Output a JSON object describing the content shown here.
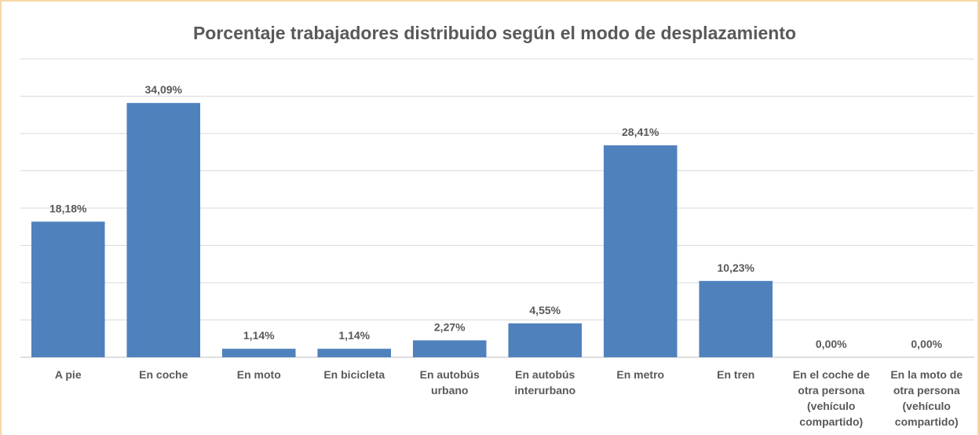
{
  "chart_data": {
    "type": "bar",
    "title": "Porcentaje trabajadores distribuido según el modo de desplazamiento",
    "categories": [
      "A pie",
      "En coche",
      "En moto",
      "En bicicleta",
      "En autobús urbano",
      "En autobús interurbano",
      "En metro",
      "En tren",
      "En el coche de otra persona (vehículo compartido)",
      "En la moto de otra persona (vehículo compartido)"
    ],
    "values": [
      18.18,
      34.09,
      1.14,
      1.14,
      2.27,
      4.55,
      28.41,
      10.23,
      0,
      0
    ],
    "value_labels": [
      "18,18%",
      "34,09%",
      "1,14%",
      "1,14%",
      "2,27%",
      "4,55%",
      "28,41%",
      "10,23%",
      "0,00%",
      "0,00%"
    ],
    "color": "#4f81bd",
    "ylim": [
      0,
      40
    ],
    "yticks": [
      0,
      5,
      10,
      15,
      20,
      25,
      30,
      35,
      40
    ],
    "grid": true
  }
}
